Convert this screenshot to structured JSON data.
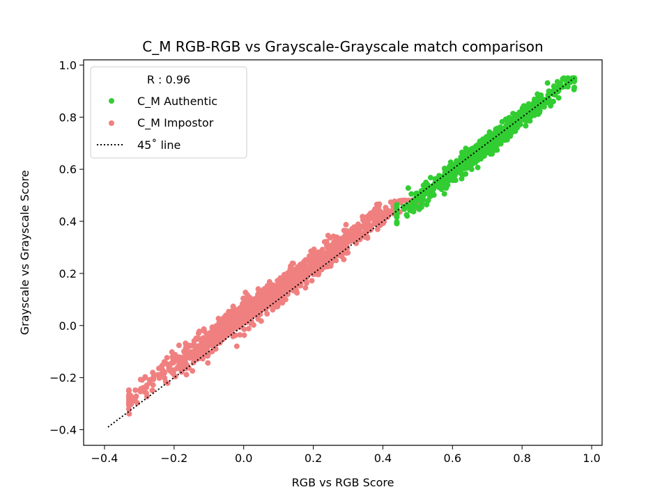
{
  "chart_data": {
    "type": "scatter",
    "title": "C_M RGB-RGB vs Grayscale-Grayscale match comparison",
    "xlabel": "RGB vs RGB Score",
    "ylabel": "Grayscale vs Grayscale Score",
    "xlim": [
      -0.46,
      1.03
    ],
    "ylim": [
      -0.46,
      1.02
    ],
    "xticks": [
      -0.4,
      -0.2,
      0.0,
      0.2,
      0.4,
      0.6,
      0.8,
      1.0
    ],
    "yticks": [
      -0.4,
      -0.2,
      0.0,
      0.2,
      0.4,
      0.6,
      0.8,
      1.0
    ],
    "xtick_labels": [
      "−0.4",
      "−0.2",
      "0.0",
      "0.2",
      "0.4",
      "0.6",
      "0.8",
      "1.0"
    ],
    "ytick_labels": [
      "−0.4",
      "−0.2",
      "0.0",
      "0.2",
      "0.4",
      "0.6",
      "0.8",
      "1.0"
    ],
    "grid": false,
    "legend": {
      "position": "top-left",
      "title": "R : 0.96",
      "entries": [
        "C_M Authentic",
        "C_M Impostor",
        "45˚ line"
      ]
    },
    "series": [
      {
        "name": "C_M Authentic",
        "color": "#32cd32",
        "kind": "scatter",
        "x_range": [
          0.44,
          0.95
        ],
        "y_range": [
          0.37,
          0.95
        ],
        "center_line": {
          "slope": 1.05,
          "intercept": -0.04
        },
        "spread": 0.04
      },
      {
        "name": "C_M Impostor",
        "color": "#f08080",
        "kind": "scatter",
        "x_range": [
          -0.33,
          0.5
        ],
        "y_range": [
          -0.34,
          0.48
        ],
        "center_line": {
          "slope": 0.96,
          "intercept": 0.04
        },
        "spread": 0.05
      },
      {
        "name": "45˚ line",
        "color": "#000000",
        "kind": "line",
        "style": "dotted",
        "x": [
          -0.39,
          0.95
        ],
        "y": [
          -0.39,
          0.95
        ]
      }
    ]
  }
}
